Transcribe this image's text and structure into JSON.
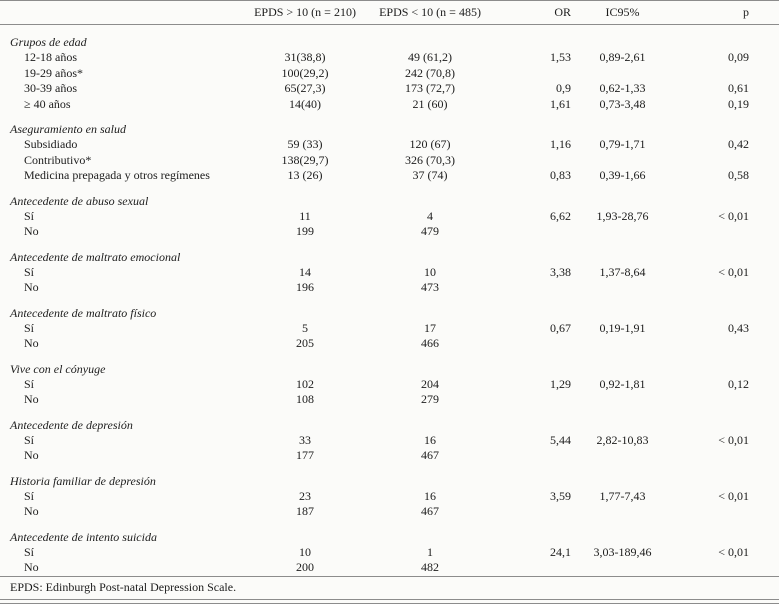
{
  "table": {
    "columns": [
      "EPDS > 10 (n = 210)",
      "EPDS < 10 (n = 485)",
      "OR",
      "IC95%",
      "p"
    ],
    "groups": [
      {
        "label": "Grupos de edad",
        "rows": [
          {
            "label": "12-18 años",
            "values": [
              "31(38,8)",
              "49 (61,2)",
              "1,53",
              "0,89-2,61",
              "0,09"
            ]
          },
          {
            "label": "19-29 años*",
            "values": [
              "100(29,2)",
              "242 (70,8)",
              "",
              "",
              ""
            ]
          },
          {
            "label": "30-39 años",
            "values": [
              "65(27,3)",
              "173 (72,7)",
              "0,9",
              "0,62-1,33",
              "0,61"
            ]
          },
          {
            "label": "≥ 40 años",
            "values": [
              "14(40)",
              "21 (60)",
              "1,61",
              "0,73-3,48",
              "0,19"
            ]
          }
        ]
      },
      {
        "label": "Aseguramiento en salud",
        "rows": [
          {
            "label": "Subsidiado",
            "values": [
              "59 (33)",
              "120 (67)",
              "1,16",
              "0,79-1,71",
              "0,42"
            ]
          },
          {
            "label": "Contributivo*",
            "values": [
              "138(29,7)",
              "326 (70,3)",
              "",
              "",
              ""
            ]
          },
          {
            "label": "Medicina prepagada y otros regímenes",
            "values": [
              "13 (26)",
              "37 (74)",
              "0,83",
              "0,39-1,66",
              "0,58"
            ]
          }
        ]
      },
      {
        "label": "Antecedente de abuso sexual",
        "rows": [
          {
            "label": "Sí",
            "values": [
              "11",
              "4",
              "6,62",
              "1,93-28,76",
              "< 0,01"
            ]
          },
          {
            "label": "No",
            "values": [
              "199",
              "479",
              "",
              "",
              ""
            ]
          }
        ]
      },
      {
        "label": "Antecedente de maltrato emocional",
        "rows": [
          {
            "label": "Sí",
            "values": [
              "14",
              "10",
              "3,38",
              "1,37-8,64",
              "< 0,01"
            ]
          },
          {
            "label": "No",
            "values": [
              "196",
              "473",
              "",
              "",
              ""
            ]
          }
        ]
      },
      {
        "label": "Antecedente de maltrato físico",
        "rows": [
          {
            "label": "Sí",
            "values": [
              "5",
              "17",
              "0,67",
              "0,19-1,91",
              "0,43"
            ]
          },
          {
            "label": "No",
            "values": [
              "205",
              "466",
              "",
              "",
              ""
            ]
          }
        ]
      },
      {
        "label": "Vive con el cónyuge",
        "rows": [
          {
            "label": "Sí",
            "values": [
              "102",
              "204",
              "1,29",
              "0,92-1,81",
              "0,12"
            ]
          },
          {
            "label": "No",
            "values": [
              "108",
              "279",
              "",
              "",
              ""
            ]
          }
        ]
      },
      {
        "label": "Antecedente de depresión",
        "rows": [
          {
            "label": "Sí",
            "values": [
              "33",
              "16",
              "5,44",
              "2,82-10,83",
              "< 0,01"
            ]
          },
          {
            "label": "No",
            "values": [
              "177",
              "467",
              "",
              "",
              ""
            ]
          }
        ]
      },
      {
        "label": "Historia familiar de depresión",
        "rows": [
          {
            "label": "Sí",
            "values": [
              "23",
              "16",
              "3,59",
              "1,77-7,43",
              "< 0,01"
            ]
          },
          {
            "label": "No",
            "values": [
              "187",
              "467",
              "",
              "",
              ""
            ]
          }
        ]
      },
      {
        "label": "Antecedente de intento suicida",
        "rows": [
          {
            "label": "Sí",
            "values": [
              "10",
              "1",
              "24,1",
              "3,03-189,46",
              "< 0,01"
            ]
          },
          {
            "label": "No",
            "values": [
              "200",
              "482",
              "",
              "",
              ""
            ]
          }
        ]
      }
    ],
    "footnote": "EPDS: Edinburgh Post-natal Depression Scale."
  }
}
